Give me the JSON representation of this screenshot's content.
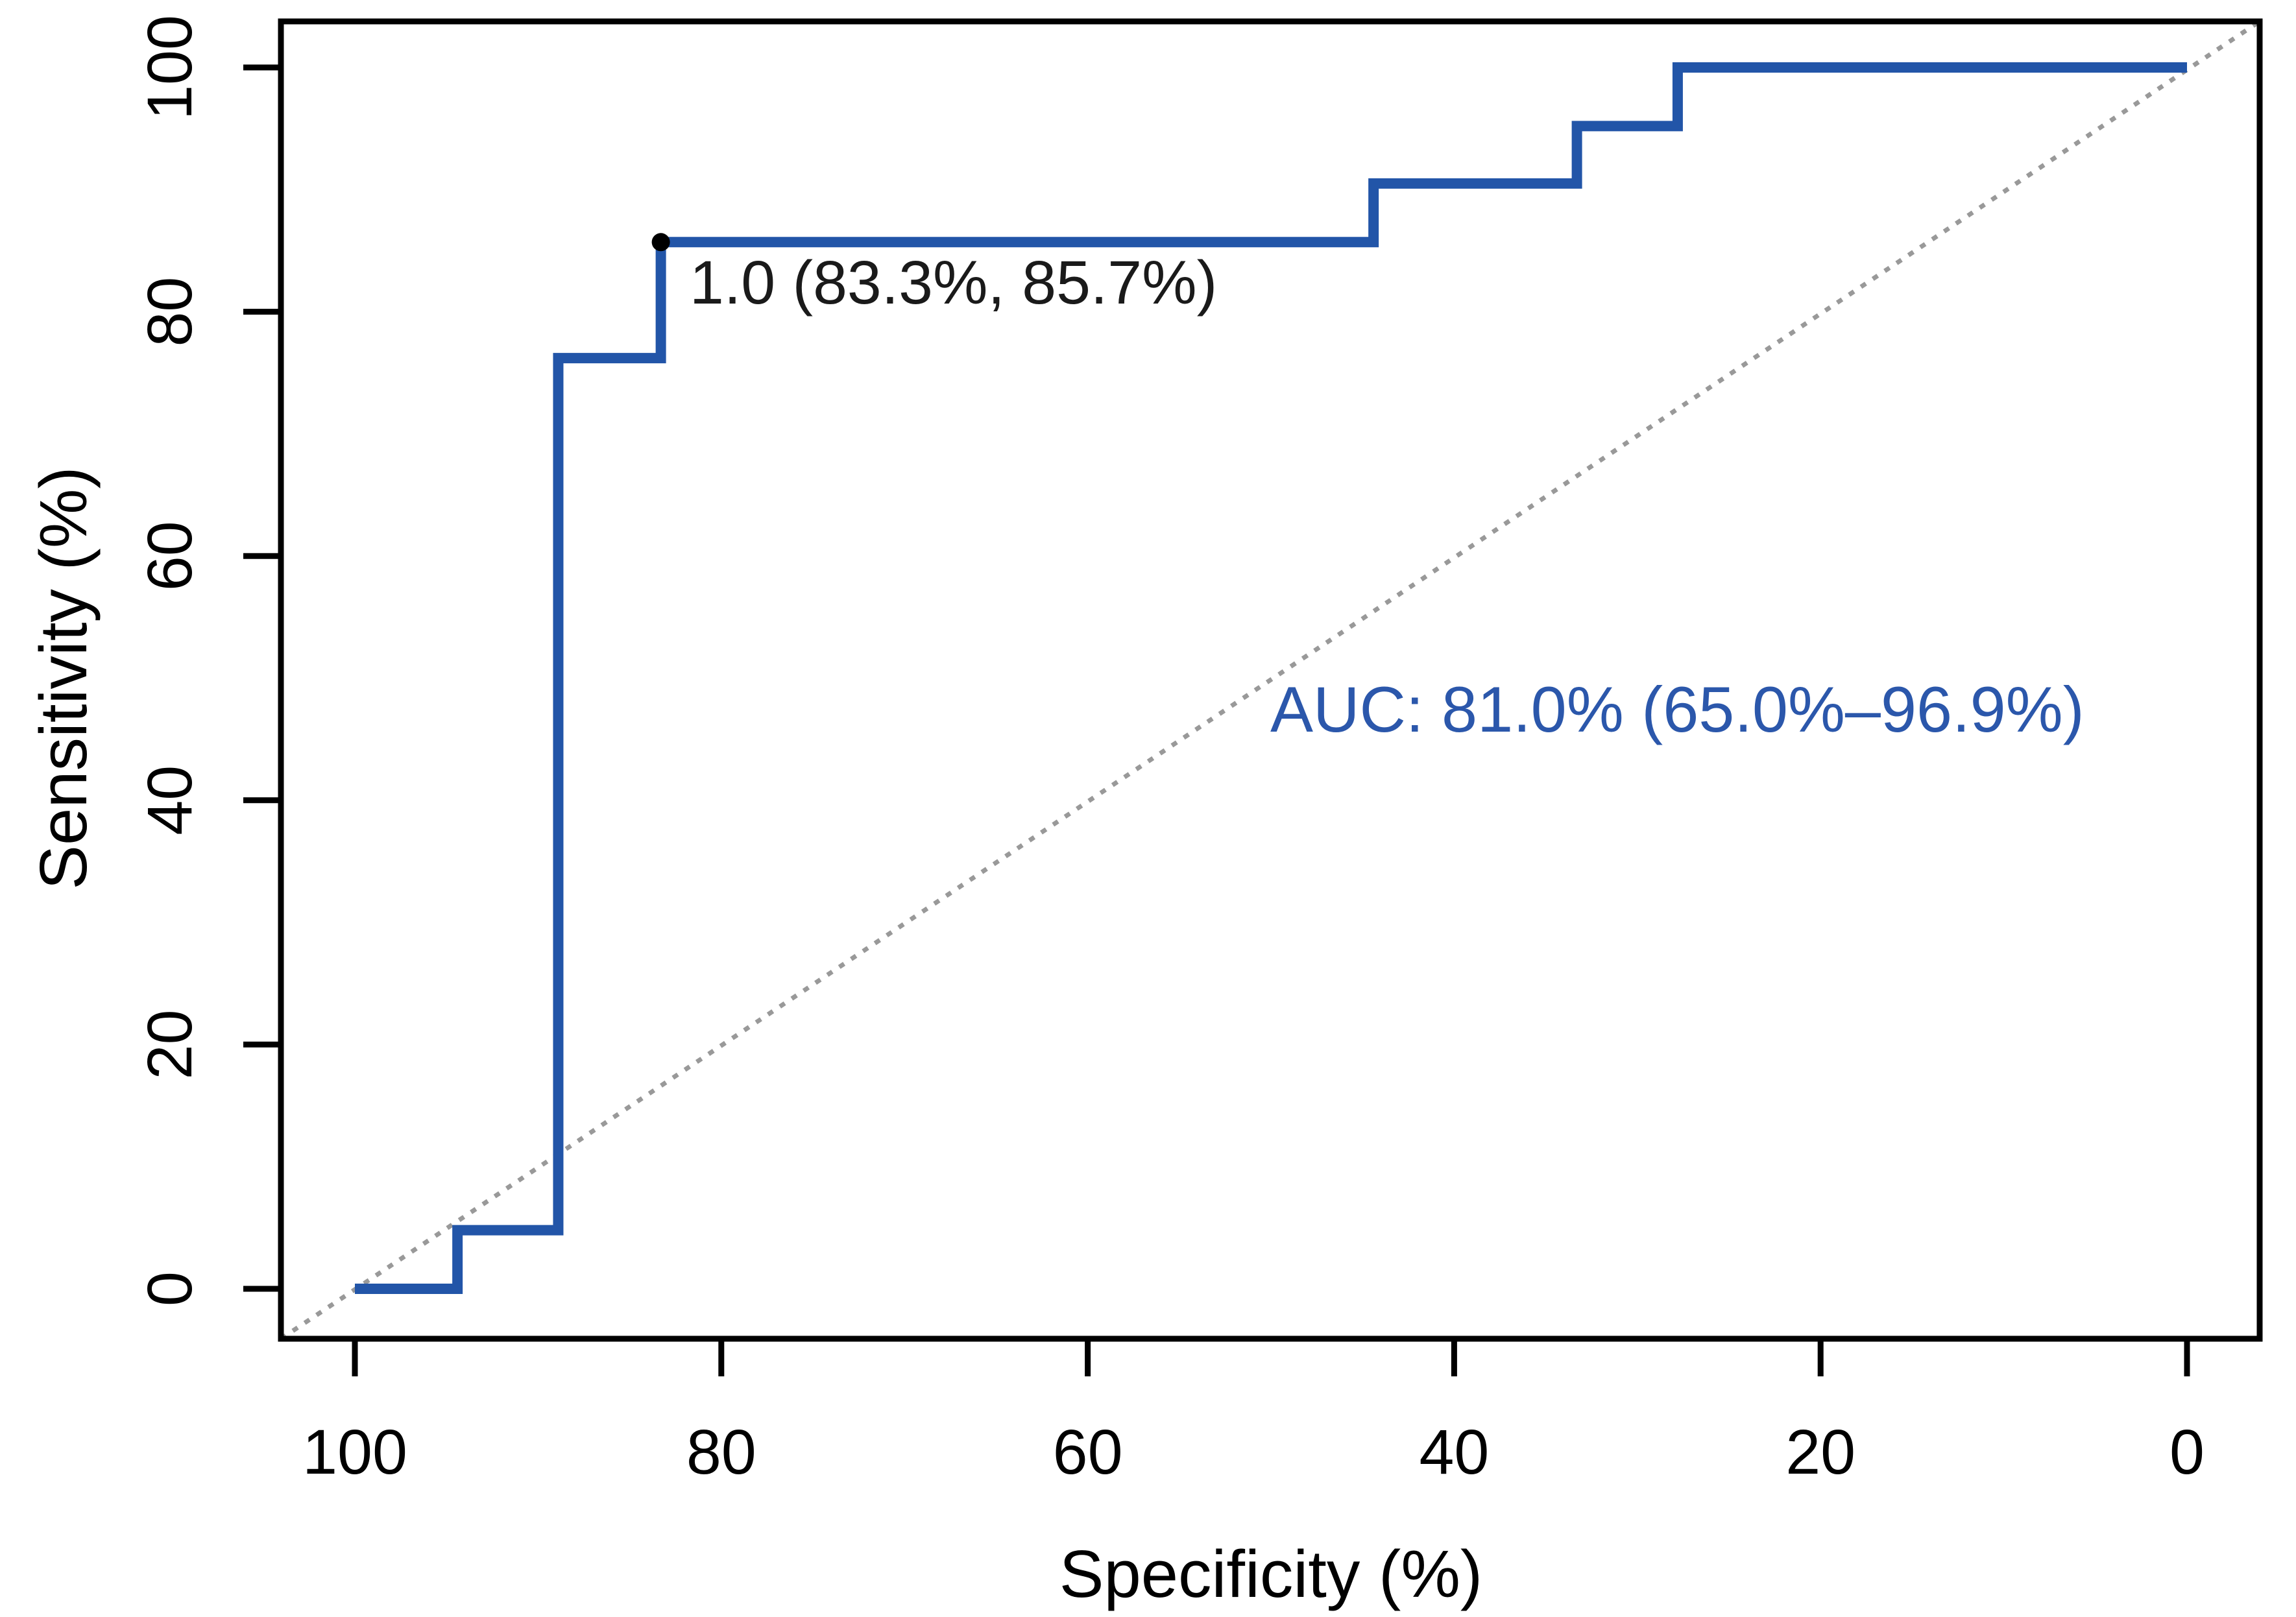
{
  "figure": {
    "background": "#ffffff",
    "axis_color": "#000000",
    "tick_label_color": "#000000",
    "curve_color": "#2255a8",
    "diagonal_color": "#999999",
    "threshold_text_color": "#1a1a1a",
    "threshold_point_color": "#000000",
    "auc_text_color": "#2b57ab"
  },
  "chart_data": {
    "type": "line",
    "subtype": "roc-step-curve",
    "title": "",
    "xlabel": "Specificity (%)",
    "ylabel": "Sensitivity (%)",
    "xlim": [
      100,
      0
    ],
    "ylim": [
      0,
      100
    ],
    "x_axis_reversed": true,
    "grid": false,
    "legend": "none",
    "x_ticks": [
      100,
      80,
      60,
      40,
      20,
      0
    ],
    "y_ticks": [
      0,
      20,
      40,
      60,
      80,
      100
    ],
    "diagonal_reference_line": {
      "present": true,
      "style": "dotted",
      "from_spec_sens": [
        100,
        0
      ],
      "to_spec_sens": [
        0,
        100
      ]
    },
    "series": [
      {
        "name": "ROC curve",
        "points_spec_sens": [
          [
            100,
            0
          ],
          [
            94.4,
            0
          ],
          [
            94.4,
            4.8
          ],
          [
            88.9,
            4.8
          ],
          [
            88.9,
            76.2
          ],
          [
            83.3,
            76.2
          ],
          [
            83.3,
            85.7
          ],
          [
            44.4,
            85.7
          ],
          [
            44.4,
            90.5
          ],
          [
            33.3,
            90.5
          ],
          [
            33.3,
            95.2
          ],
          [
            27.8,
            95.2
          ],
          [
            27.8,
            100
          ],
          [
            0,
            100
          ]
        ]
      }
    ],
    "best_threshold": {
      "label": "1.0 (83.3%, 85.7%)",
      "threshold": "1.0",
      "specificity_pct": 83.3,
      "sensitivity_pct": 85.7
    },
    "auc": {
      "label": "AUC: 81.0% (65.0%–96.9%)",
      "auc_pct": 81.0,
      "ci_low_pct": 65.0,
      "ci_high_pct": 96.9
    }
  }
}
